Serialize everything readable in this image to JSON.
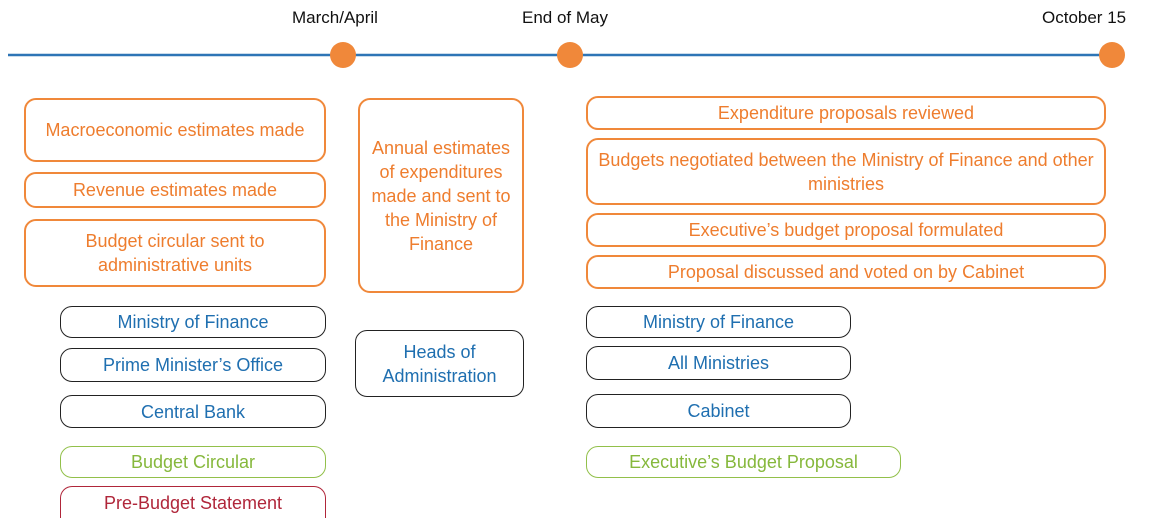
{
  "milestones": [
    "March/April",
    "End of May",
    "October 15"
  ],
  "activities": [
    [
      "Macroeconomic estimates made",
      "Revenue estimates made",
      "Budget circular sent to administrative units"
    ],
    [
      "Annual estimates of expenditures made and sent to the Ministry of Finance"
    ],
    [
      "Expenditure proposals reviewed",
      "Budgets negotiated between the Ministry of Finance and other ministries",
      "Executive’s budget proposal formulated",
      "Proposal discussed and voted on by Cabinet"
    ]
  ],
  "actors": [
    [
      "Ministry of Finance",
      "Prime Minister’s Office",
      "Central Bank"
    ],
    [
      "Heads of Administration"
    ],
    [
      "Ministry of Finance",
      "All Ministries",
      "Cabinet"
    ]
  ],
  "documents": [
    [
      "Budget Circular",
      "Pre-Budget Statement"
    ],
    [
      "Executive’s Budget Proposal"
    ]
  ]
}
